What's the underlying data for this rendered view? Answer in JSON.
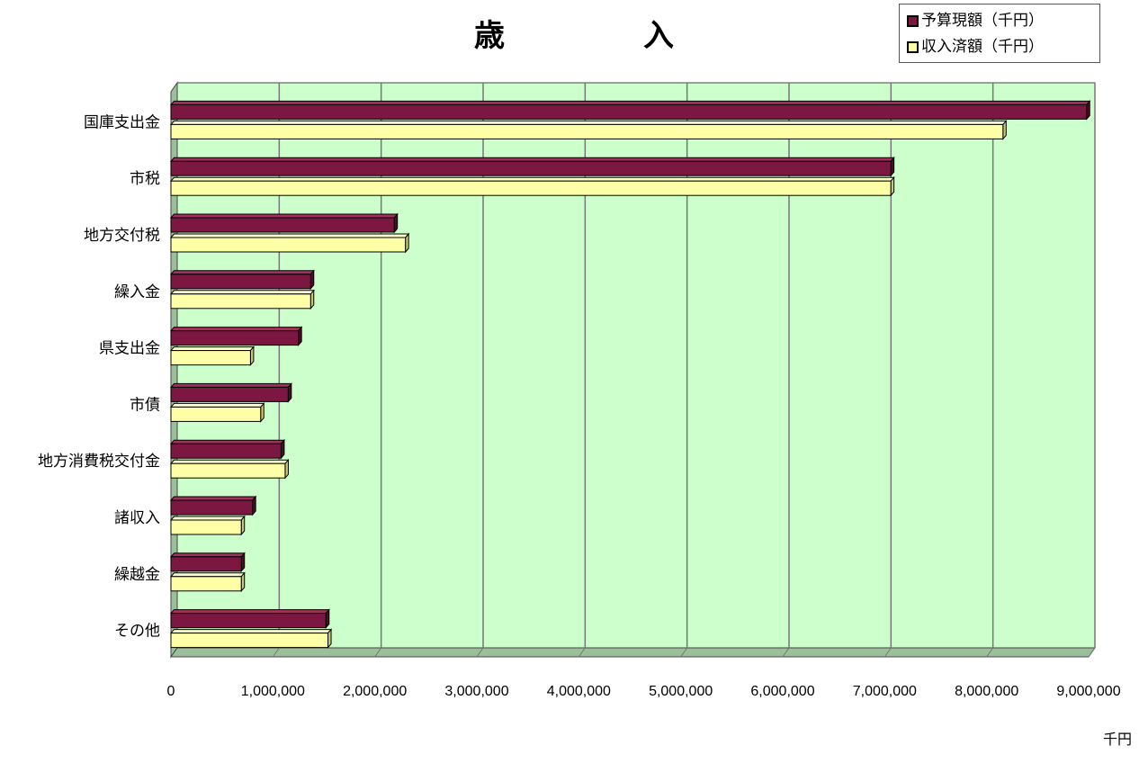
{
  "title": "歳　入",
  "unit_label": "千円",
  "colors": {
    "budget": "#7B1740",
    "received": "#FFFFA8",
    "plot_bg": "#CCFFCC",
    "floor": "#9BBF9B"
  },
  "legend": [
    {
      "label": "予算現額（千円）",
      "color": "#7B1740"
    },
    {
      "label": "収入済額（千円）",
      "color": "#FFFFA8"
    }
  ],
  "chart_data": {
    "type": "bar",
    "orientation": "horizontal",
    "title": "歳　入",
    "categories": [
      "国庫支出金",
      "市税",
      "地方交付税",
      "繰入金",
      "県支出金",
      "市債",
      "地方消費税交付金",
      "諸収入",
      "繰越金",
      "その他"
    ],
    "series": [
      {
        "name": "予算現額（千円）",
        "values": [
          8980000,
          7060000,
          2190000,
          1370000,
          1250000,
          1150000,
          1080000,
          800000,
          690000,
          1520000
        ]
      },
      {
        "name": "収入済額（千円）",
        "values": [
          8160000,
          7060000,
          2300000,
          1370000,
          780000,
          880000,
          1120000,
          690000,
          690000,
          1540000
        ]
      }
    ],
    "x_ticks": [
      "0",
      "1,000,000",
      "2,000,000",
      "3,000,000",
      "4,000,000",
      "5,000,000",
      "6,000,000",
      "7,000,000",
      "8,000,000",
      "9,000,000"
    ],
    "xlim": [
      0,
      9000000
    ],
    "xlabel": "千円",
    "grid": true,
    "legend_position": "top-right"
  }
}
